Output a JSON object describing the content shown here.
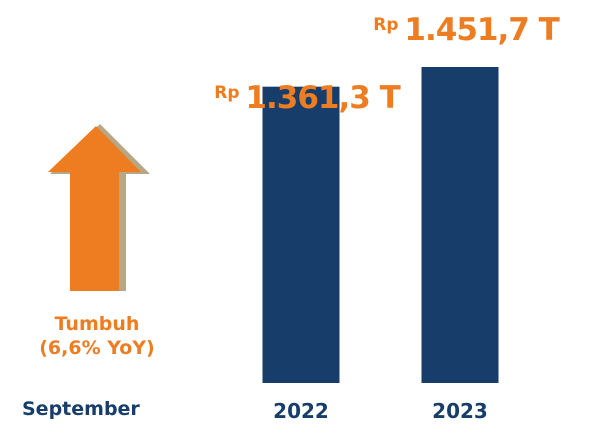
{
  "colors": {
    "bar": "#173e6b",
    "accent": "#ee7d22",
    "arrow_shadow": "#b8a784"
  },
  "growth": {
    "label": "Tumbuh",
    "detail": "(6,6% YoY)",
    "icon": "up-arrow-icon"
  },
  "period_label": "September",
  "chart_data": {
    "type": "bar",
    "categories": [
      "2022",
      "2023"
    ],
    "values": [
      1361.3,
      1451.7
    ],
    "value_labels": [
      {
        "prefix": "Rp",
        "amount": "1.361,3 T"
      },
      {
        "prefix": "Rp",
        "amount": "1.451,7 T"
      }
    ],
    "unit": "T",
    "ylim": [
      0,
      1451.7
    ],
    "grid": false,
    "legend": "none"
  }
}
